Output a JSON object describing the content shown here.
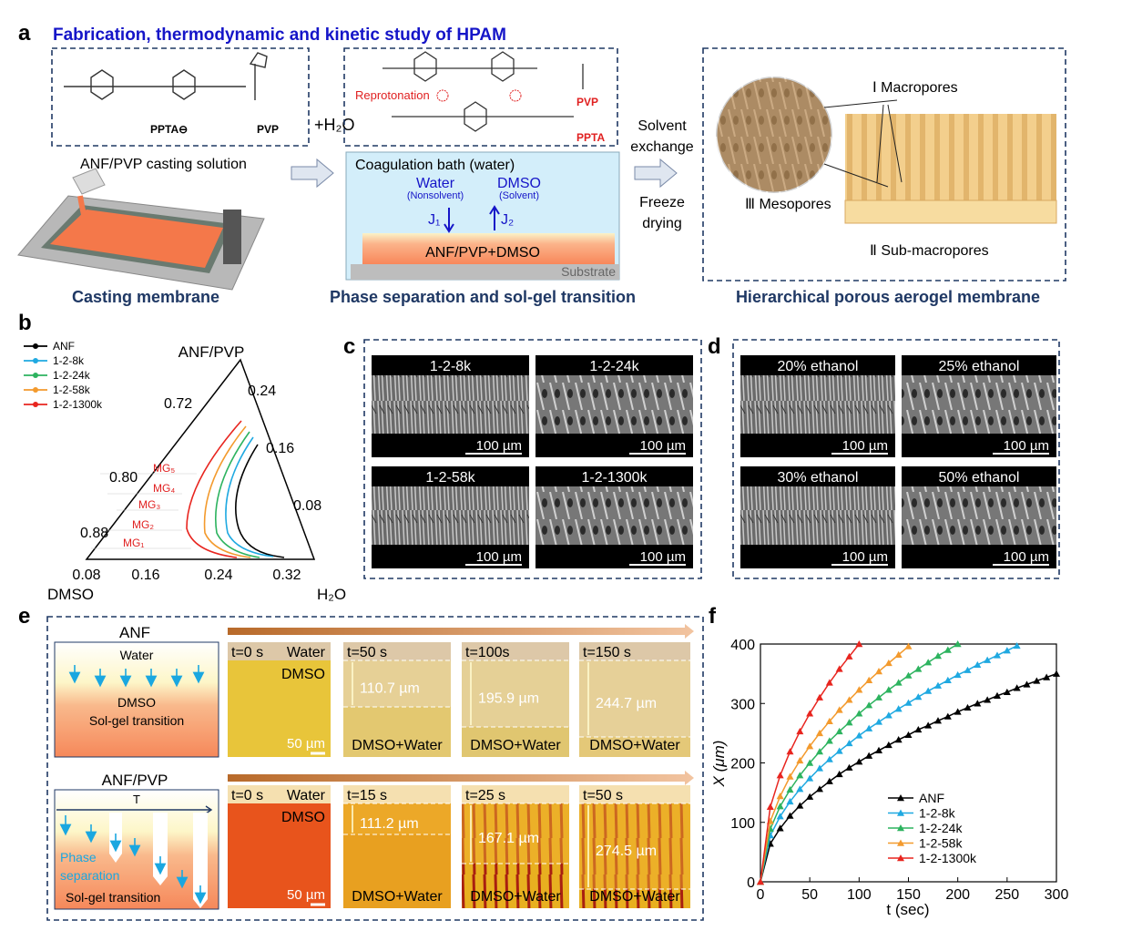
{
  "panel_a": {
    "label": "a",
    "title": "Fabrication, thermodynamic and kinetic study of HPAM",
    "ppta": "PPTA⊖",
    "pvp": "PVP",
    "h2o": "+H₂O",
    "reprotonation": "Reprotonation",
    "pvp_red": "PVP",
    "ppta_red": "PPTA",
    "casting_solution": "ANF/PVP casting solution",
    "bath": "Coagulation bath (water)",
    "water": "Water",
    "nonsolvent": "(Nonsolvent)",
    "dmso": "DMSO",
    "solvent": "(Solvent)",
    "j1": "J₁",
    "j2": "J₂",
    "film": "ANF/PVP+DMSO",
    "substrate": "Substrate",
    "solvent_exchange": [
      "Solvent",
      "exchange"
    ],
    "freeze_drying": [
      "Freeze",
      "drying"
    ],
    "macropores": "Ⅰ Macropores",
    "mesopores": "Ⅲ Mesopores",
    "sub_macropores": "Ⅱ Sub-macropores",
    "captions": [
      "Casting membrane",
      "Phase separation and sol-gel transition",
      "Hierarchical porous aerogel membrane"
    ]
  },
  "panel_b": {
    "label": "b",
    "legend": [
      "ANF",
      "1-2-8k",
      "1-2-24k",
      "1-2-58k",
      "1-2-1300k"
    ],
    "vertices": [
      "ANF/PVP",
      "DMSO",
      "H₂O"
    ],
    "left_ticks": [
      "0.72",
      "0.80",
      "0.88"
    ],
    "right_ticks": [
      "0.24",
      "0.16",
      "0.08"
    ],
    "bottom_ticks": [
      "0.08",
      "0.16",
      "0.24",
      "0.32"
    ],
    "mg": [
      "MG₅",
      "MG₄",
      "MG₃",
      "MG₂",
      "MG₁"
    ]
  },
  "panel_c": {
    "label": "c",
    "images": [
      "1-2-8k",
      "1-2-24k",
      "1-2-58k",
      "1-2-1300k"
    ],
    "scale_bar": "100 µm"
  },
  "panel_d": {
    "label": "d",
    "images": [
      "20% ethanol",
      "25% ethanol",
      "30% ethanol",
      "50% ethanol"
    ],
    "scale_bar": "100 µm"
  },
  "panel_e": {
    "label": "e",
    "rows": [
      {
        "title": "ANF",
        "schematic": [
          "Water",
          "DMSO",
          "Sol-gel transition"
        ],
        "frames": [
          {
            "time": "t=0 s",
            "top": "Water",
            "bottom": "DMSO",
            "scale": "50 µm"
          },
          {
            "time": "t=50 s",
            "thickness": "110.7 µm",
            "bottom": "DMSO+Water"
          },
          {
            "time": "t=100s",
            "thickness": "195.9 µm",
            "bottom": "DMSO+Water"
          },
          {
            "time": "t=150 s",
            "thickness": "244.7 µm",
            "bottom": "DMSO+Water"
          }
        ]
      },
      {
        "title": "ANF/PVP",
        "schematic": [
          "T",
          "Phase",
          "separation",
          "Sol-gel transition"
        ],
        "frames": [
          {
            "time": "t=0 s",
            "top": "Water",
            "bottom": "DMSO",
            "scale": "50 µm"
          },
          {
            "time": "t=15 s",
            "thickness": "111.2 µm",
            "bottom": "DMSO+Water"
          },
          {
            "time": "t=25 s",
            "thickness": "167.1 µm",
            "bottom": "DMSO+Water"
          },
          {
            "time": "t=50 s",
            "thickness": "274.5 µm",
            "bottom": "DMSO+Water"
          }
        ]
      }
    ]
  },
  "chart_data": {
    "type": "line",
    "label": "f",
    "xlabel": "t (sec)",
    "ylabel": "X (μm)",
    "xlim": [
      0,
      300
    ],
    "xticks": [
      0,
      50,
      100,
      150,
      200,
      250,
      300
    ],
    "ylim": [
      0,
      400
    ],
    "yticks": [
      0,
      100,
      200,
      300,
      400
    ],
    "legend": "lower right",
    "series": [
      {
        "name": "ANF",
        "color": "#000000",
        "x": [
          0,
          10,
          20,
          30,
          40,
          50,
          60,
          70,
          80,
          90,
          100,
          110,
          120,
          130,
          140,
          150,
          160,
          170,
          180,
          190,
          200,
          210,
          220,
          230,
          240,
          250,
          260,
          270,
          280,
          290,
          300
        ],
        "values": [
          0,
          64,
          90,
          111,
          128,
          143,
          156,
          169,
          181,
          192,
          202,
          212,
          221,
          230,
          239,
          247,
          256,
          263,
          271,
          278,
          286,
          293,
          300,
          306,
          313,
          319,
          326,
          332,
          338,
          344,
          350
        ]
      },
      {
        "name": "1-2-8k",
        "color": "#1fa9e1",
        "x": [
          0,
          10,
          20,
          30,
          40,
          50,
          60,
          70,
          80,
          90,
          100,
          110,
          120,
          130,
          140,
          150,
          160,
          170,
          180,
          190,
          200,
          210,
          220,
          230,
          240,
          250,
          260
        ],
        "values": [
          0,
          78,
          110,
          135,
          156,
          174,
          191,
          206,
          220,
          233,
          246,
          258,
          269,
          280,
          291,
          301,
          311,
          321,
          330,
          339,
          348,
          356,
          365,
          373,
          381,
          389,
          397
        ]
      },
      {
        "name": "1-2-24k",
        "color": "#2db35f",
        "x": [
          0,
          10,
          20,
          30,
          40,
          50,
          60,
          70,
          80,
          90,
          100,
          110,
          120,
          130,
          140,
          150,
          160,
          170,
          180,
          190,
          200
        ],
        "values": [
          0,
          89,
          127,
          155,
          179,
          200,
          219,
          237,
          253,
          268,
          283,
          297,
          310,
          323,
          335,
          347,
          358,
          369,
          380,
          390,
          400
        ]
      },
      {
        "name": "1-2-58k",
        "color": "#f39a2d",
        "x": [
          0,
          10,
          20,
          30,
          40,
          50,
          60,
          70,
          80,
          90,
          100,
          110,
          120,
          130,
          140,
          150
        ],
        "values": [
          0,
          102,
          144,
          177,
          204,
          228,
          250,
          270,
          289,
          306,
          323,
          339,
          354,
          368,
          382,
          396
        ]
      },
      {
        "name": "1-2-1300k",
        "color": "#e8251f",
        "x": [
          0,
          10,
          20,
          30,
          40,
          50,
          60,
          70,
          80,
          90,
          100
        ],
        "values": [
          0,
          126,
          179,
          219,
          253,
          283,
          310,
          335,
          358,
          379,
          400
        ]
      }
    ]
  }
}
